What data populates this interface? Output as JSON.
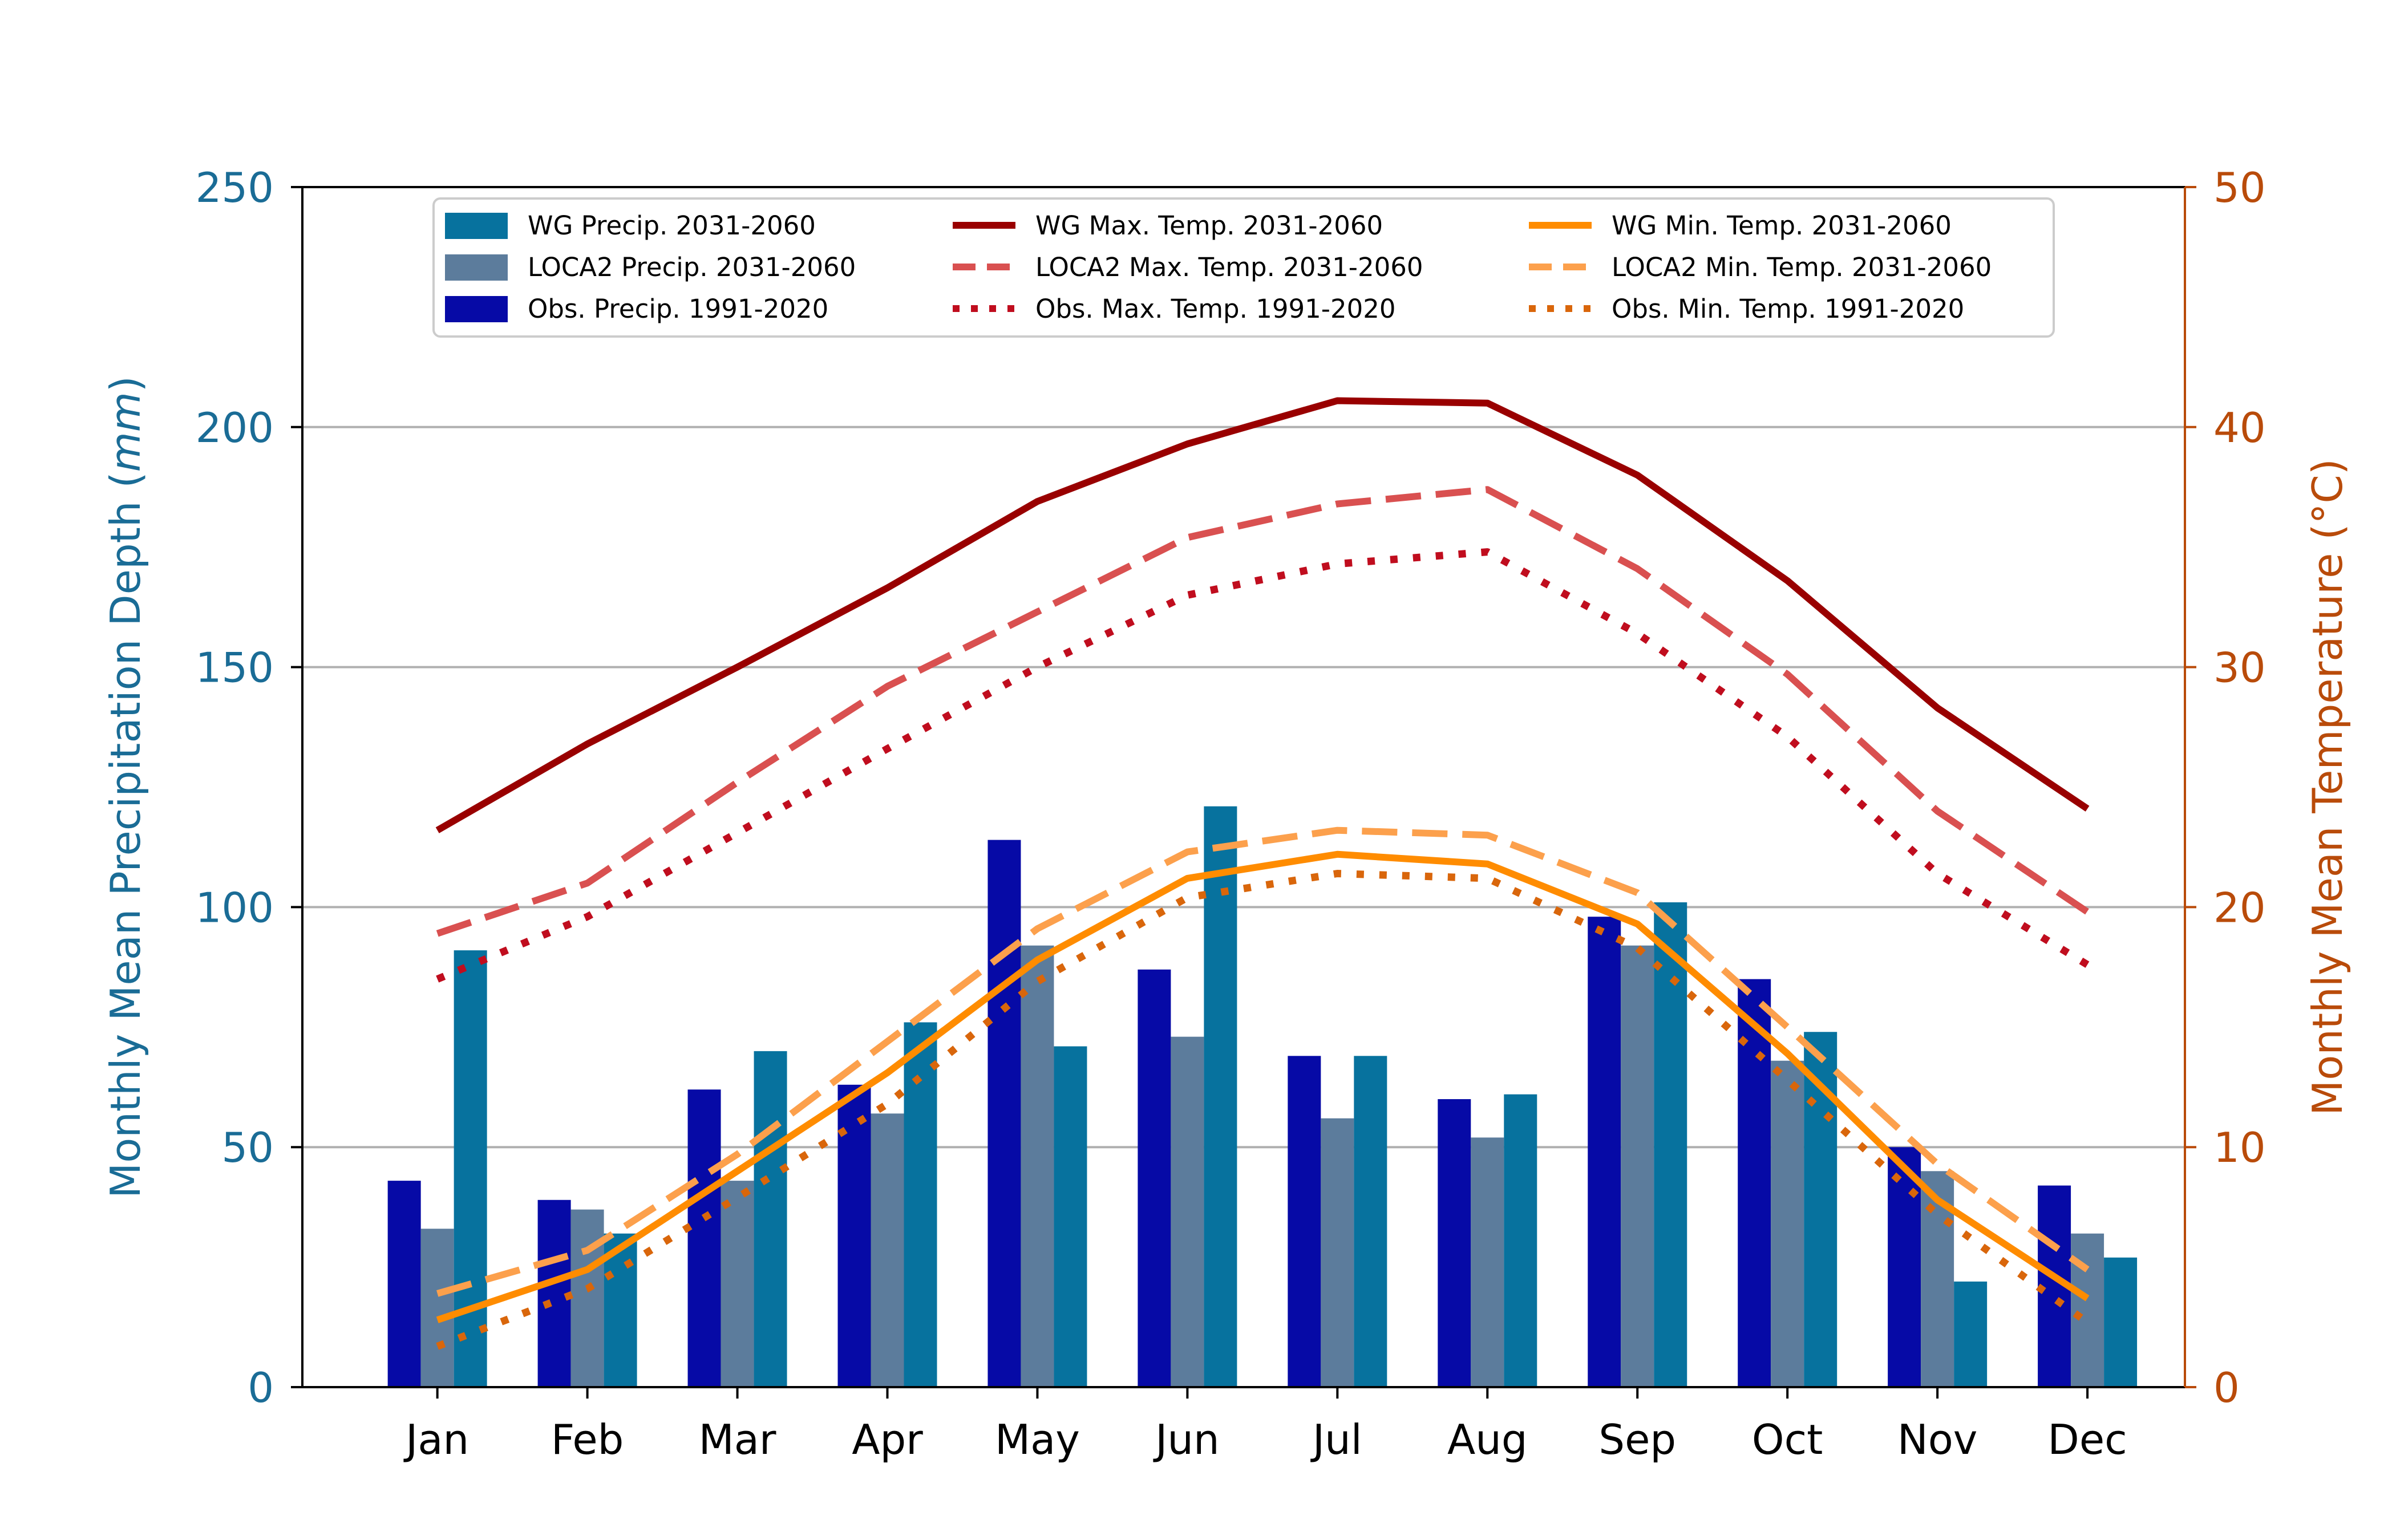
{
  "chart_data": {
    "type": "bar+line",
    "categories": [
      "Jan",
      "Feb",
      "Mar",
      "Apr",
      "May",
      "Jun",
      "Jul",
      "Aug",
      "Sep",
      "Oct",
      "Nov",
      "Dec"
    ],
    "y_left": {
      "label_prefix": "Monthly Mean Precipitation Depth (",
      "label_unit": "mm",
      "label_suffix": ")",
      "lim": [
        0,
        250
      ],
      "ticks": [
        0,
        50,
        100,
        150,
        200,
        250
      ],
      "color": "#1a6c96"
    },
    "y_right": {
      "label_prefix": "Monthly Mean Temperature (",
      "label_unit": "°C",
      "label_suffix": ")",
      "lim": [
        0,
        50
      ],
      "ticks": [
        0,
        10,
        20,
        30,
        40,
        50
      ],
      "color": "#b94b0a"
    },
    "grid": "horizontal (left axis)",
    "legend_position": "top-center",
    "bar_series": [
      {
        "name": "Obs. Precip. 1991-2020",
        "color": "#060aa6",
        "values": [
          43,
          39,
          62,
          63,
          114,
          87,
          69,
          60,
          98,
          85,
          50,
          42
        ]
      },
      {
        "name": "LOCA2 Precip. 2031-2060",
        "color": "#5c7c9c",
        "values": [
          33,
          37,
          43,
          57,
          92,
          73,
          56,
          52,
          92,
          68,
          45,
          32
        ]
      },
      {
        "name": "WG Precip. 2031-2060",
        "color": "#07729e",
        "values": [
          91,
          32,
          70,
          76,
          71,
          121,
          69,
          61,
          101,
          74,
          22,
          27
        ]
      }
    ],
    "line_series": [
      {
        "name": "WG Max. Temp. 2031-2060",
        "color": "#990000",
        "style": "solid",
        "values": [
          23.2,
          26.8,
          30.0,
          33.3,
          36.9,
          39.3,
          41.1,
          41.0,
          38.0,
          33.6,
          28.3,
          24.1
        ]
      },
      {
        "name": "LOCA2 Max. Temp. 2031-2060",
        "color": "#d95050",
        "style": "dashed",
        "values": [
          18.9,
          21.0,
          25.2,
          29.2,
          32.3,
          35.4,
          36.8,
          37.4,
          34.1,
          29.7,
          24.0,
          19.8
        ]
      },
      {
        "name": "Obs. Max. Temp. 1991-2020",
        "color": "#c00d1e",
        "style": "dotted",
        "values": [
          17.0,
          19.6,
          23.1,
          26.6,
          30.0,
          33.0,
          34.3,
          34.8,
          31.4,
          27.1,
          21.4,
          17.6
        ]
      },
      {
        "name": "WG Min. Temp. 2031-2060",
        "color": "#ff8c00",
        "style": "solid",
        "values": [
          2.8,
          4.9,
          9.0,
          13.1,
          17.8,
          21.2,
          22.2,
          21.8,
          19.3,
          13.9,
          7.8,
          3.7
        ]
      },
      {
        "name": "LOCA2 Min. Temp. 2031-2060",
        "color": "#fca04c",
        "style": "dashed",
        "values": [
          3.9,
          5.7,
          9.7,
          14.4,
          19.1,
          22.3,
          23.2,
          23.0,
          20.6,
          15.0,
          9.3,
          4.9
        ]
      },
      {
        "name": "Obs. Min. Temp. 1991-2020",
        "color": "#d9660b",
        "style": "dotted",
        "values": [
          1.7,
          4.1,
          7.9,
          11.8,
          16.9,
          20.4,
          21.4,
          21.2,
          18.3,
          12.8,
          7.2,
          2.7
        ]
      }
    ],
    "legend": [
      [
        "WG Precip. 2031-2060",
        "WG Max. Temp. 2031-2060",
        "WG Min. Temp. 2031-2060"
      ],
      [
        "LOCA2 Precip. 2031-2060",
        "LOCA2 Max. Temp. 2031-2060",
        "LOCA2 Min. Temp. 2031-2060"
      ],
      [
        "Obs. Precip. 1991-2020",
        "Obs. Max. Temp. 1991-2020",
        "Obs. Min. Temp. 1991-2020"
      ]
    ]
  }
}
